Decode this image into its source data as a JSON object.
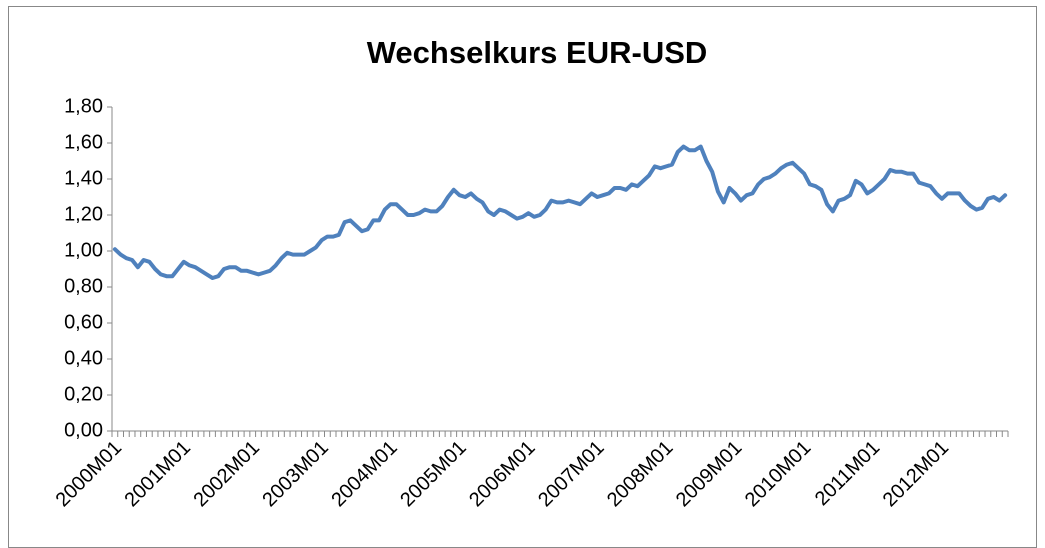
{
  "chart_data": {
    "type": "line",
    "title": "Wechselkurs EUR-USD",
    "categories": [
      "2000M01",
      null,
      null,
      null,
      null,
      null,
      null,
      null,
      null,
      null,
      null,
      null,
      "2001M01",
      null,
      null,
      null,
      null,
      null,
      null,
      null,
      null,
      null,
      null,
      null,
      "2002M01",
      null,
      null,
      null,
      null,
      null,
      null,
      null,
      null,
      null,
      null,
      null,
      "2003M01",
      null,
      null,
      null,
      null,
      null,
      null,
      null,
      null,
      null,
      null,
      null,
      "2004M01",
      null,
      null,
      null,
      null,
      null,
      null,
      null,
      null,
      null,
      null,
      null,
      "2005M01",
      null,
      null,
      null,
      null,
      null,
      null,
      null,
      null,
      null,
      null,
      null,
      "2006M01",
      null,
      null,
      null,
      null,
      null,
      null,
      null,
      null,
      null,
      null,
      null,
      "2007M01",
      null,
      null,
      null,
      null,
      null,
      null,
      null,
      null,
      null,
      null,
      null,
      "2008M01",
      null,
      null,
      null,
      null,
      null,
      null,
      null,
      null,
      null,
      null,
      null,
      "2009M01",
      null,
      null,
      null,
      null,
      null,
      null,
      null,
      null,
      null,
      null,
      null,
      "2010M01",
      null,
      null,
      null,
      null,
      null,
      null,
      null,
      null,
      null,
      null,
      null,
      "2011M01",
      null,
      null,
      null,
      null,
      null,
      null,
      null,
      null,
      null,
      null,
      null,
      "2012M01",
      null,
      null,
      null,
      null,
      null,
      null,
      null,
      null,
      null,
      null,
      null
    ],
    "values": [
      1.01,
      0.98,
      0.96,
      0.95,
      0.91,
      0.95,
      0.94,
      0.9,
      0.87,
      0.86,
      0.86,
      0.9,
      0.94,
      0.92,
      0.91,
      0.89,
      0.87,
      0.85,
      0.86,
      0.9,
      0.91,
      0.91,
      0.89,
      0.89,
      0.88,
      0.87,
      0.88,
      0.89,
      0.92,
      0.96,
      0.99,
      0.98,
      0.98,
      0.98,
      1.0,
      1.02,
      1.06,
      1.08,
      1.08,
      1.09,
      1.16,
      1.17,
      1.14,
      1.11,
      1.12,
      1.17,
      1.17,
      1.23,
      1.26,
      1.26,
      1.23,
      1.2,
      1.2,
      1.21,
      1.23,
      1.22,
      1.22,
      1.25,
      1.3,
      1.34,
      1.31,
      1.3,
      1.32,
      1.29,
      1.27,
      1.22,
      1.2,
      1.23,
      1.22,
      1.2,
      1.18,
      1.19,
      1.21,
      1.19,
      1.2,
      1.23,
      1.28,
      1.27,
      1.27,
      1.28,
      1.27,
      1.26,
      1.29,
      1.32,
      1.3,
      1.31,
      1.32,
      1.35,
      1.35,
      1.34,
      1.37,
      1.36,
      1.39,
      1.42,
      1.47,
      1.46,
      1.47,
      1.48,
      1.55,
      1.58,
      1.56,
      1.56,
      1.58,
      1.5,
      1.44,
      1.33,
      1.27,
      1.35,
      1.32,
      1.28,
      1.31,
      1.32,
      1.37,
      1.4,
      1.41,
      1.43,
      1.46,
      1.48,
      1.49,
      1.46,
      1.43,
      1.37,
      1.36,
      1.34,
      1.26,
      1.22,
      1.28,
      1.29,
      1.31,
      1.39,
      1.37,
      1.32,
      1.34,
      1.37,
      1.4,
      1.45,
      1.44,
      1.44,
      1.43,
      1.43,
      1.38,
      1.37,
      1.36,
      1.32,
      1.29,
      1.32,
      1.32,
      1.32,
      1.28,
      1.25,
      1.23,
      1.24,
      1.29,
      1.3,
      1.28,
      1.31
    ],
    "color": "#4f81bd",
    "ylim": [
      0,
      1.8
    ],
    "yticks": [
      {
        "value": 0,
        "label": "0,00"
      },
      {
        "value": 0.2,
        "label": "0,20"
      },
      {
        "value": 0.4,
        "label": "0,40"
      },
      {
        "value": 0.6,
        "label": "0,60"
      },
      {
        "value": 0.8,
        "label": "0,80"
      },
      {
        "value": 1,
        "label": "1,00"
      },
      {
        "value": 1.2,
        "label": "1,20"
      },
      {
        "value": 1.4,
        "label": "1,40"
      },
      {
        "value": 1.6,
        "label": "1,60"
      },
      {
        "value": 1.8,
        "label": "1,80"
      }
    ],
    "grid": false
  }
}
